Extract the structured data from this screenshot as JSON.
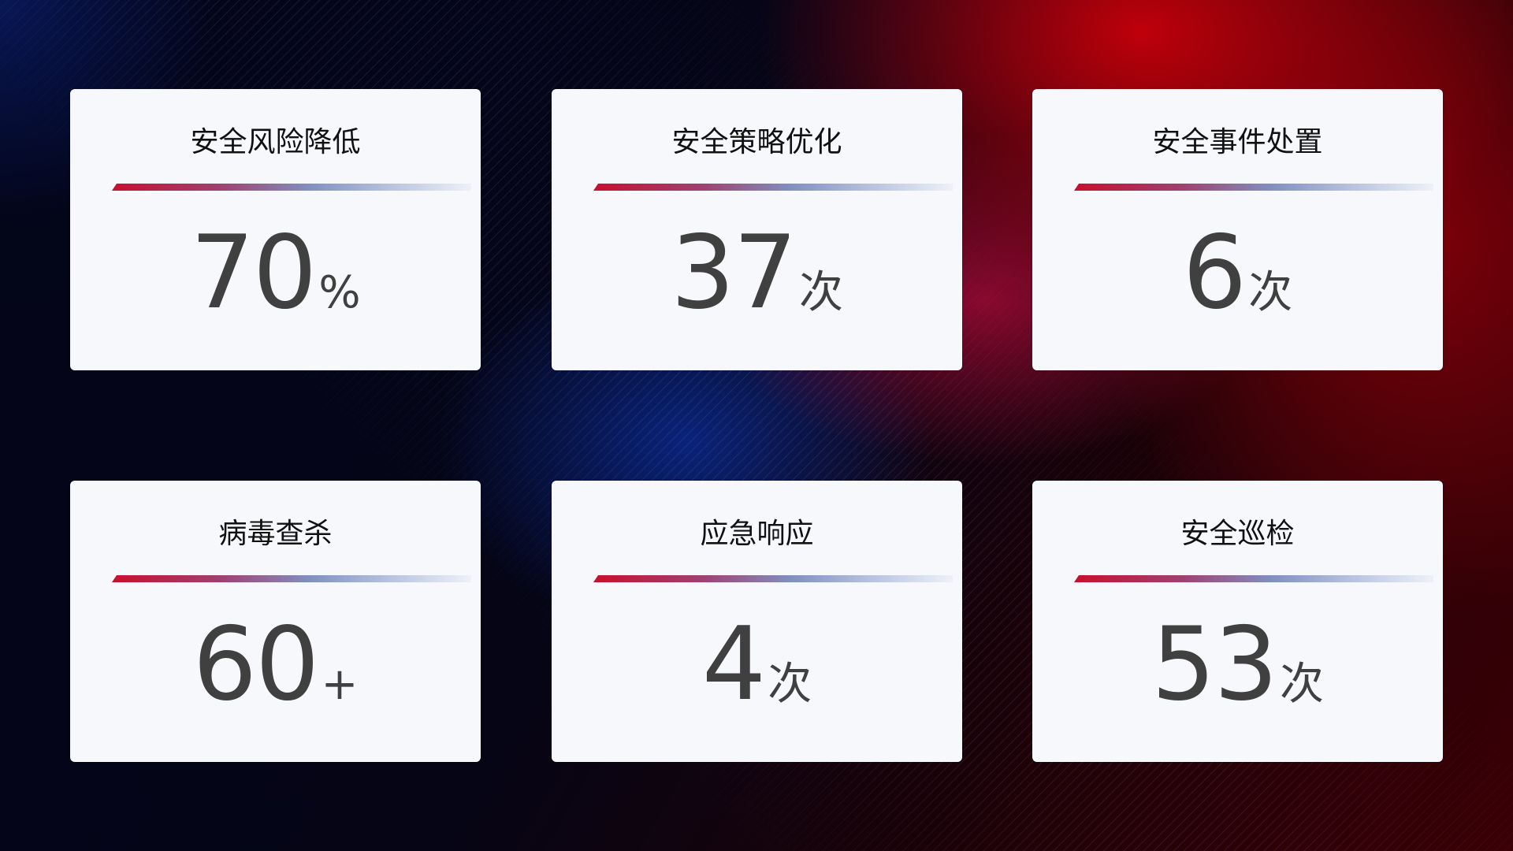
{
  "cards": [
    {
      "title": "安全风险降低",
      "value": "70",
      "unit": "%"
    },
    {
      "title": "安全策略优化",
      "value": "37",
      "unit": "次"
    },
    {
      "title": "安全事件处置",
      "value": "6",
      "unit": "次"
    },
    {
      "title": "病毒查杀",
      "value": "60",
      "unit": "+"
    },
    {
      "title": "应急响应",
      "value": "4",
      "unit": "次"
    },
    {
      "title": "安全巡检",
      "value": "53",
      "unit": "次"
    }
  ],
  "colors": {
    "accent_red": "#c8102e",
    "accent_blue": "#8090c0",
    "card_bg": "#f6f8fc",
    "value_text": "#404040"
  }
}
